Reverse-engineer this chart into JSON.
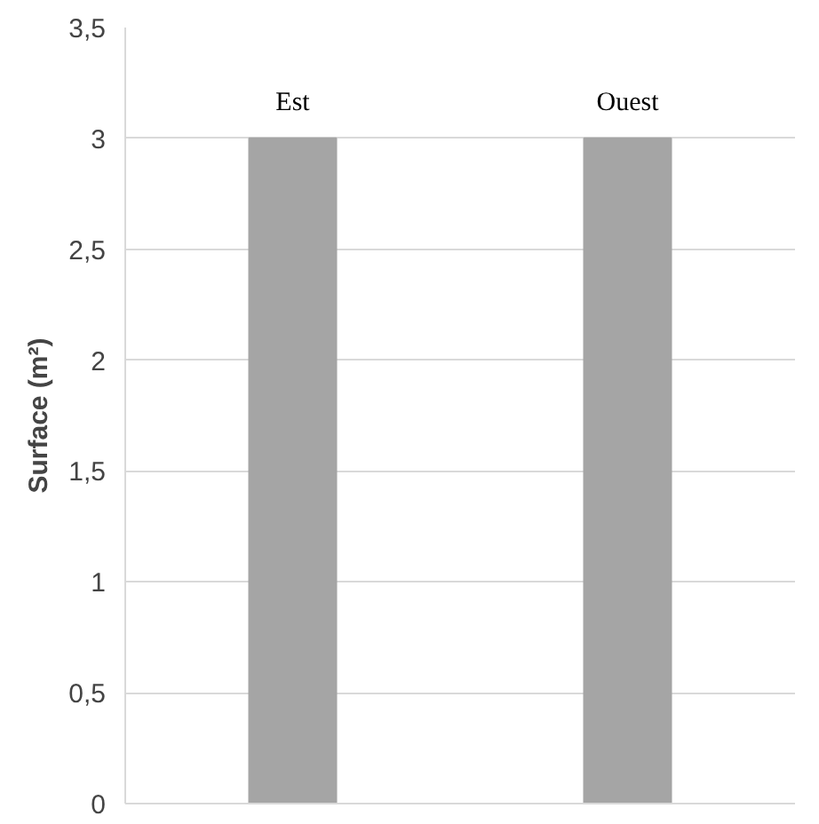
{
  "chart_data": {
    "type": "bar",
    "ylabel": "Surface (m²)",
    "categories": [
      "Est",
      "Ouest"
    ],
    "values": [
      3,
      3
    ],
    "color": "#a5a5a5",
    "ylim": [
      0,
      3.5
    ],
    "yticks": [
      0,
      {
        "value": 0.5,
        "label": "0,5"
      },
      1,
      {
        "value": 1.5,
        "label": "1,5"
      },
      2,
      {
        "value": 2.5,
        "label": "2,5"
      },
      3,
      {
        "value": 3.5,
        "label": "3,5"
      }
    ],
    "grid": "y",
    "tick_labels": "y"
  }
}
